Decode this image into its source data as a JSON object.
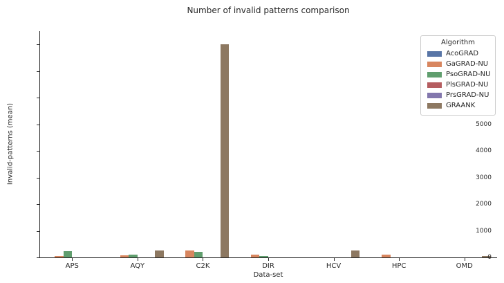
{
  "chart_data": {
    "type": "bar",
    "title": "Number of invalid patterns comparison",
    "xlabel": "Data-set",
    "ylabel": "Invalid-patterns (mean)",
    "categories": [
      "APS",
      "AQY",
      "C2K",
      "DIR",
      "HCV",
      "HPC",
      "OMD"
    ],
    "series": [
      {
        "name": "AcoGRAD",
        "color": "#5875A6",
        "values": [
          0,
          0,
          0,
          0,
          0,
          0,
          0
        ]
      },
      {
        "name": "GaGRAD-NU",
        "color": "#D8865F",
        "values": [
          40,
          75,
          250,
          100,
          0,
          110,
          0
        ]
      },
      {
        "name": "PsoGRAD-NU",
        "color": "#609E6E",
        "values": [
          230,
          105,
          215,
          50,
          0,
          0,
          0
        ]
      },
      {
        "name": "PlsGRAD-NU",
        "color": "#B55D60",
        "values": [
          0,
          0,
          0,
          0,
          0,
          0,
          0
        ]
      },
      {
        "name": "PrsGRAD-NU",
        "color": "#8377AD",
        "values": [
          0,
          0,
          0,
          0,
          0,
          0,
          0
        ]
      },
      {
        "name": "GRAANK",
        "color": "#8D7861",
        "values": [
          0,
          270,
          8010,
          0,
          270,
          0,
          55
        ]
      }
    ],
    "ylim": [
      0,
      8500
    ],
    "yticks": [
      0,
      1000,
      2000,
      3000,
      4000,
      5000,
      6000,
      7000,
      8000
    ],
    "legend_title": "Algorithm",
    "legend_position": "upper right",
    "grid": false
  }
}
